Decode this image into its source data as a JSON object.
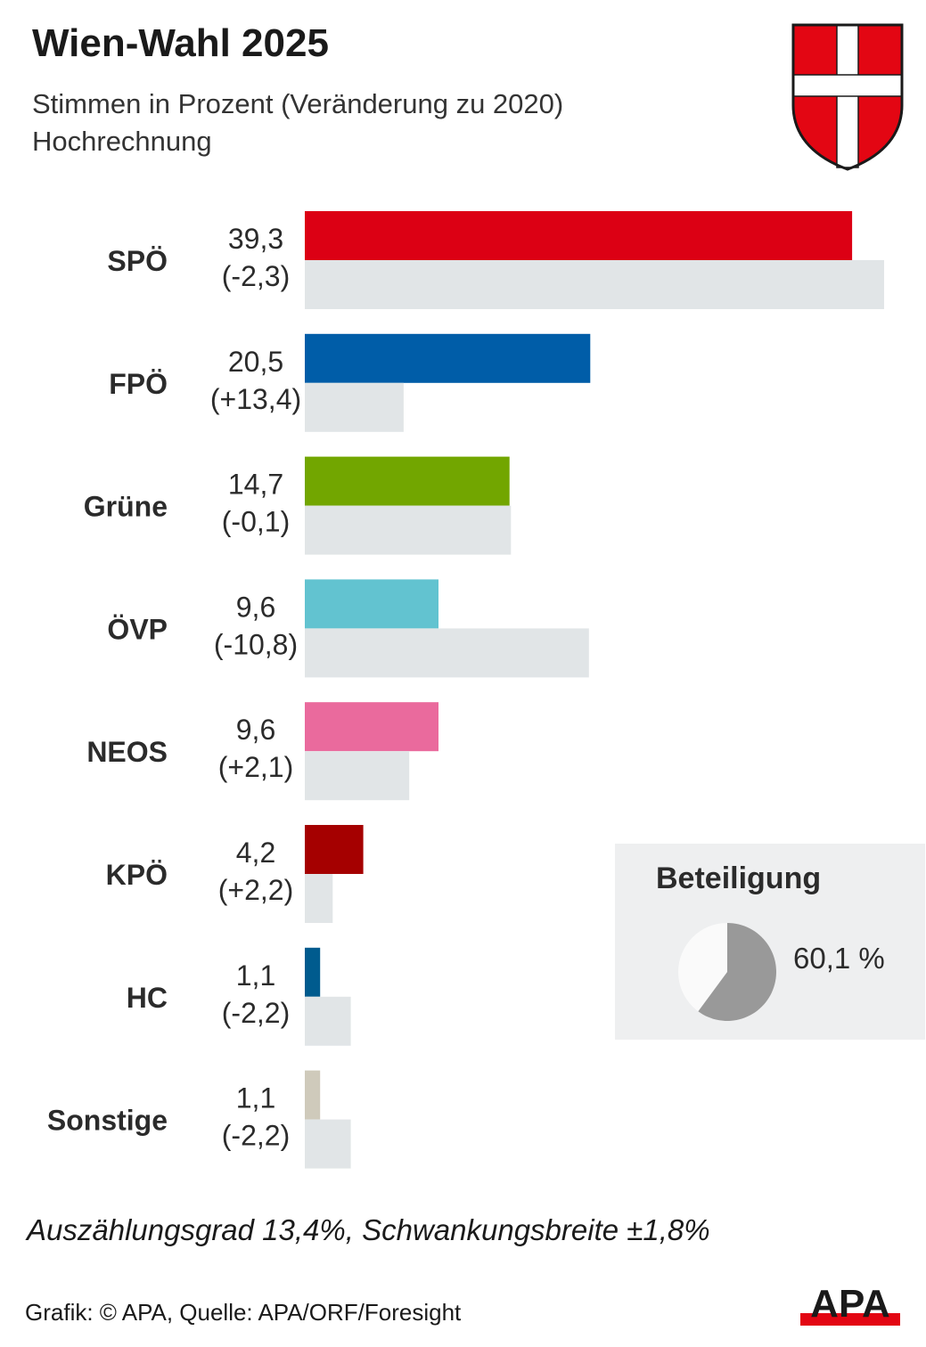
{
  "header": {
    "title": "Wien-Wahl 2025",
    "subtitle_line1": "Stimmen in Prozent (Veränderung zu 2020)",
    "subtitle_line2": "Hochrechnung"
  },
  "crest": {
    "icon": "vienna-coat-of-arms-icon",
    "color_red": "#e30613",
    "color_white": "#ffffff"
  },
  "chart_data": {
    "type": "bar",
    "orientation": "horizontal",
    "title": "Wien-Wahl 2025",
    "categories": [
      "SPÖ",
      "FPÖ",
      "Grüne",
      "ÖVP",
      "NEOS",
      "KPÖ",
      "HC",
      "Sonstige"
    ],
    "series": [
      {
        "values": [
          39.3,
          20.5,
          14.7,
          9.6,
          9.6,
          4.2,
          1.1,
          1.1
        ],
        "labels": [
          "39,3",
          "20,5",
          "14,7",
          "9,6",
          "9,6",
          "4,2",
          "1,1",
          "1,1"
        ],
        "colors": [
          "#dc0014",
          "#005da8",
          "#72a600",
          "#62c3d0",
          "#ea6a9d",
          "#a50000",
          "#005b8e",
          "#cfcabb"
        ]
      },
      {
        "values": [
          41.6,
          7.1,
          14.8,
          20.4,
          7.5,
          2.0,
          3.3,
          3.3
        ],
        "color": "#e1e5e7"
      }
    ],
    "change_labels": [
      "(-2,3)",
      "(+13,4)",
      "(-0,1)",
      "(-10,8)",
      "(+2,1)",
      "(+2,2)",
      "(-2,2)",
      "(-2,2)"
    ],
    "xlim": [
      0,
      41.6
    ],
    "grid": false,
    "axes_visible": false
  },
  "turnout": {
    "title": "Beteiligung",
    "value": 60.1,
    "value_label": "60,1 %",
    "color_filled": "#999999",
    "color_rest": "#fafafa"
  },
  "footer": {
    "note": "Auszählungsgrad 13,4%, Schwankungsbreite ±1,8%",
    "source": "Grafik: © APA, Quelle: APA/ORF/Foresight",
    "logo_text": "APA",
    "logo_color": "#1a1a1a",
    "logo_accent": "#e30613"
  }
}
